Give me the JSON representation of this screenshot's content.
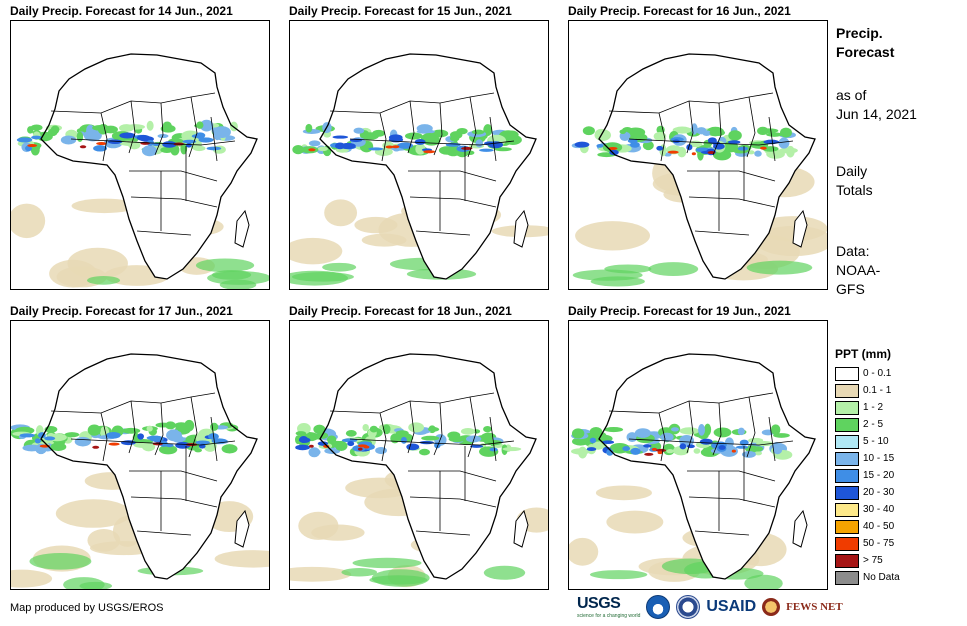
{
  "panels": [
    {
      "title": "Daily Precip. Forecast for 14 Jun., 2021"
    },
    {
      "title": "Daily Precip. Forecast for 15 Jun., 2021"
    },
    {
      "title": "Daily Precip. Forecast for 16 Jun., 2021"
    },
    {
      "title": "Daily Precip. Forecast for 17 Jun., 2021"
    },
    {
      "title": "Daily Precip. Forecast for 18 Jun., 2021"
    },
    {
      "title": "Daily Precip. Forecast for 19 Jun., 2021"
    }
  ],
  "side": {
    "heading_line1": "Precip.",
    "heading_line2": "Forecast",
    "asof_line1": "as of",
    "asof_line2": "Jun 14, 2021",
    "totals_line1": "Daily",
    "totals_line2": "Totals",
    "data_line1": "Data:",
    "data_line2": "NOAA-",
    "data_line3": "GFS"
  },
  "legend": {
    "title": "PPT (mm)",
    "items": [
      {
        "label": "0 - 0.1",
        "color": "#ffffff"
      },
      {
        "label": "0.1 - 1",
        "color": "#e8d9b5"
      },
      {
        "label": "1 - 2",
        "color": "#b4f0a8"
      },
      {
        "label": "2 - 5",
        "color": "#5fd35f"
      },
      {
        "label": "5 - 10",
        "color": "#b0e8f5"
      },
      {
        "label": "10 - 15",
        "color": "#7ab4ea"
      },
      {
        "label": "15 - 20",
        "color": "#3f8ee6"
      },
      {
        "label": "20 - 30",
        "color": "#1e56d8"
      },
      {
        "label": "30 - 40",
        "color": "#fde98a"
      },
      {
        "label": "40 - 50",
        "color": "#f5a300"
      },
      {
        "label": "50 - 75",
        "color": "#f03c00"
      },
      {
        "label": "> 75",
        "color": "#a61515"
      },
      {
        "label": "No Data",
        "color": "#8c8c8c"
      }
    ]
  },
  "footer": {
    "credit": "Map produced by USGS/EROS"
  },
  "logos": {
    "usgs": "USGS",
    "usgs_tagline": "science for a changing world",
    "usaid": "USAID",
    "fews": "FEWS NET"
  }
}
